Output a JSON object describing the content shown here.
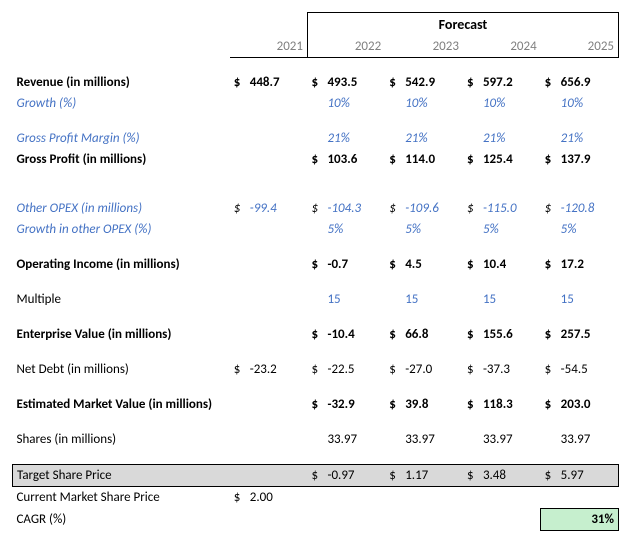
{
  "colors": {
    "assumption": "#4472c4",
    "header_gray": "#808080",
    "target_bg": "#d9d9d9",
    "cagr_bg": "#c6efce",
    "border": "#000000",
    "text": "#000000",
    "background": "#ffffff"
  },
  "header": {
    "forecast_label": "Forecast",
    "years": [
      "2021",
      "2022",
      "2023",
      "2024",
      "2025"
    ]
  },
  "currency": "$",
  "rows": {
    "revenue": {
      "label": "Revenue (in millions)",
      "values": [
        "448.7",
        "493.5",
        "542.9",
        "597.2",
        "656.9"
      ]
    },
    "growth": {
      "label": "Growth (%)",
      "values": [
        "",
        "10%",
        "10%",
        "10%",
        "10%"
      ]
    },
    "gpm": {
      "label": "Gross Profit Margin (%)",
      "values": [
        "",
        "21%",
        "21%",
        "21%",
        "21%"
      ]
    },
    "gross_profit": {
      "label": "Gross Profit (in millions)",
      "values": [
        "",
        "103.6",
        "114.0",
        "125.4",
        "137.9"
      ]
    },
    "other_opex": {
      "label": "Other OPEX (in millions)",
      "values": [
        "-99.4",
        "-104.3",
        "-109.6",
        "-115.0",
        "-120.8"
      ]
    },
    "opex_growth": {
      "label": "Growth in other OPEX (%)",
      "values": [
        "",
        "5%",
        "5%",
        "5%",
        "5%"
      ]
    },
    "op_income": {
      "label": "Operating Income (in millions)",
      "values": [
        "",
        "-0.7",
        "4.5",
        "10.4",
        "17.2"
      ]
    },
    "multiple": {
      "label": "Multiple",
      "values": [
        "",
        "15",
        "15",
        "15",
        "15"
      ]
    },
    "ev": {
      "label": "Enterprise Value (in millions)",
      "values": [
        "",
        "-10.4",
        "66.8",
        "155.6",
        "257.5"
      ]
    },
    "net_debt": {
      "label": "Net Debt (in millions)",
      "values": [
        "-23.2",
        "-22.5",
        "-27.0",
        "-37.3",
        "-54.5"
      ]
    },
    "emv": {
      "label": "Estimated Market Value (in millions)",
      "values": [
        "",
        "-32.9",
        "39.8",
        "118.3",
        "203.0"
      ]
    },
    "shares": {
      "label": "Shares (in millions)",
      "values": [
        "",
        "33.97",
        "33.97",
        "33.97",
        "33.97"
      ]
    },
    "target_price": {
      "label": "Target Share Price",
      "values": [
        "",
        "-0.97",
        "1.17",
        "3.48",
        "5.97"
      ]
    },
    "current_price": {
      "label": "Current Market Share Price",
      "values": [
        "2.00",
        "",
        "",
        "",
        ""
      ]
    },
    "cagr": {
      "label": "CAGR (%)",
      "value": "31%"
    }
  }
}
